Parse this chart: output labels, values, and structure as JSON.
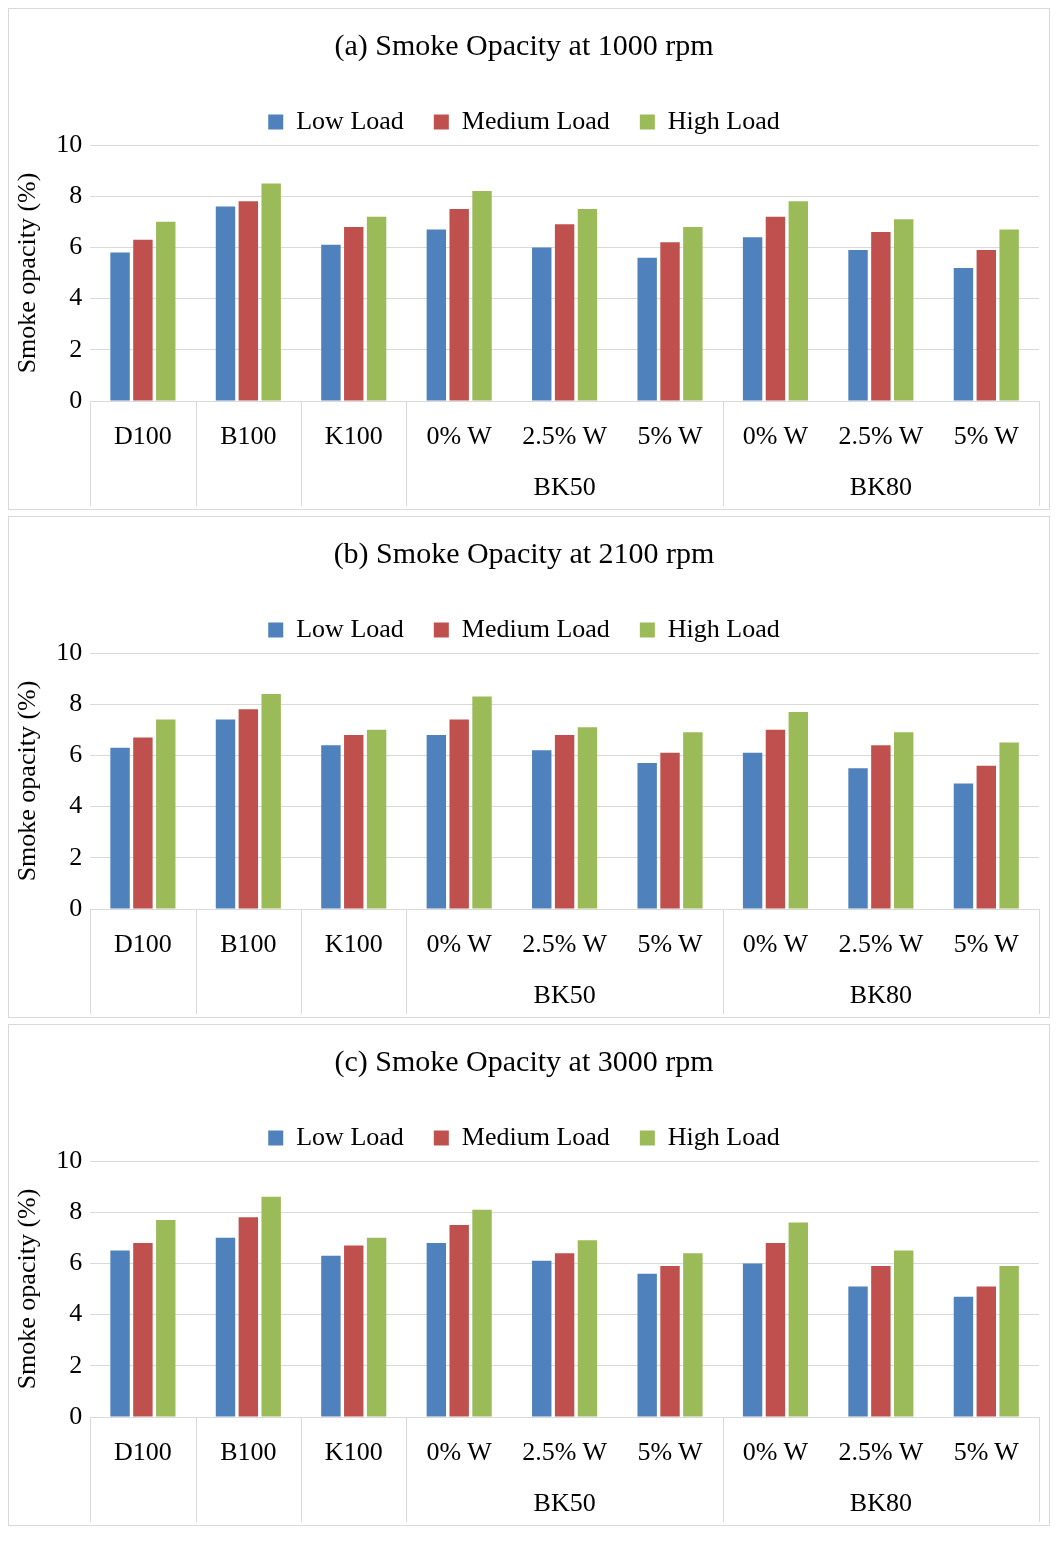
{
  "chart_data": [
    {
      "type": "bar",
      "title": "(a) Smoke Opacity at 1000 rpm",
      "ylabel": "Smoke opacity (%)",
      "legend": "top",
      "grid": "y",
      "ylim": [
        0,
        10
      ],
      "yticks": [
        0,
        2,
        4,
        6,
        8,
        10
      ],
      "categories": [
        "D100",
        "B100",
        "K100",
        "0% W",
        "2.5% W",
        "5% W",
        "0% W",
        "2.5% W",
        "5% W"
      ],
      "annotations": [
        "BK50",
        "BK80"
      ],
      "series": [
        {
          "name": "Low Load",
          "color": "#4f81bd",
          "values": [
            5.8,
            7.6,
            6.1,
            6.7,
            6.0,
            5.6,
            6.4,
            5.9,
            5.2
          ]
        },
        {
          "name": "Medium Load",
          "color": "#c0504d",
          "values": [
            6.3,
            7.8,
            6.8,
            7.5,
            6.9,
            6.2,
            7.2,
            6.6,
            5.9
          ]
        },
        {
          "name": "High Load",
          "color": "#9bbb59",
          "values": [
            7.0,
            8.5,
            7.2,
            8.2,
            7.5,
            6.8,
            7.8,
            7.1,
            6.7
          ]
        }
      ]
    },
    {
      "type": "bar",
      "title": "(b) Smoke Opacity at 2100 rpm",
      "ylabel": "Smoke opacity (%)",
      "legend": "top",
      "grid": "y",
      "ylim": [
        0,
        10
      ],
      "yticks": [
        0,
        2,
        4,
        6,
        8,
        10
      ],
      "categories": [
        "D100",
        "B100",
        "K100",
        "0% W",
        "2.5% W",
        "5% W",
        "0% W",
        "2.5% W",
        "5% W"
      ],
      "annotations": [
        "BK50",
        "BK80"
      ],
      "series": [
        {
          "name": "Low Load",
          "color": "#4f81bd",
          "values": [
            6.3,
            7.4,
            6.4,
            6.8,
            6.2,
            5.7,
            6.1,
            5.5,
            4.9
          ]
        },
        {
          "name": "Medium Load",
          "color": "#c0504d",
          "values": [
            6.7,
            7.8,
            6.8,
            7.4,
            6.8,
            6.1,
            7.0,
            6.4,
            5.6
          ]
        },
        {
          "name": "High Load",
          "color": "#9bbb59",
          "values": [
            7.4,
            8.4,
            7.0,
            8.3,
            7.1,
            6.9,
            7.7,
            6.9,
            6.5
          ]
        }
      ]
    },
    {
      "type": "bar",
      "title": "(c) Smoke Opacity at 3000 rpm",
      "ylabel": "Smoke opacity (%)",
      "legend": "top",
      "grid": "y",
      "ylim": [
        0,
        10
      ],
      "yticks": [
        0,
        2,
        4,
        6,
        8,
        10
      ],
      "categories": [
        "D100",
        "B100",
        "K100",
        "0% W",
        "2.5% W",
        "5% W",
        "0% W",
        "2.5% W",
        "5% W"
      ],
      "annotations": [
        "BK50",
        "BK80"
      ],
      "series": [
        {
          "name": "Low Load",
          "color": "#4f81bd",
          "values": [
            6.5,
            7.0,
            6.3,
            6.8,
            6.1,
            5.6,
            6.0,
            5.1,
            4.7
          ]
        },
        {
          "name": "Medium Load",
          "color": "#c0504d",
          "values": [
            6.8,
            7.8,
            6.7,
            7.5,
            6.4,
            5.9,
            6.8,
            5.9,
            5.1
          ]
        },
        {
          "name": "High Load",
          "color": "#9bbb59",
          "values": [
            7.7,
            8.6,
            7.0,
            8.1,
            6.9,
            6.4,
            7.6,
            6.5,
            5.9
          ]
        }
      ]
    }
  ]
}
